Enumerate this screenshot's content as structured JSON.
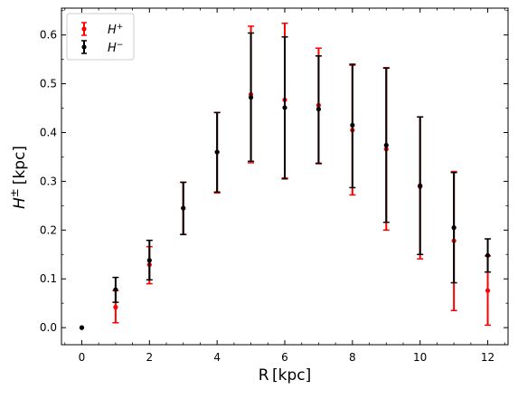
{
  "chart_data": {
    "type": "scatter",
    "title": "",
    "xlabel": "R [kpc]",
    "ylabel_main": "H",
    "ylabel_sup": "±",
    "ylabel_unit": "[kpc]",
    "xlim": [
      -0.6,
      12.6
    ],
    "ylim": [
      -0.035,
      0.655
    ],
    "xticks": [
      0,
      2,
      4,
      6,
      8,
      10,
      12
    ],
    "yticks": [
      0.0,
      0.1,
      0.2,
      0.3,
      0.4,
      0.5,
      0.6
    ],
    "xtick_labels": [
      "0",
      "2",
      "4",
      "6",
      "8",
      "10",
      "12"
    ],
    "ytick_labels": [
      "0.0",
      "0.1",
      "0.2",
      "0.3",
      "0.4",
      "0.5",
      "0.6"
    ],
    "grid": false,
    "legend_position": "top-left",
    "series": [
      {
        "name": "H+",
        "legend_main": "H",
        "legend_sup": "+",
        "color": "#ff0000",
        "x": [
          0,
          1,
          2,
          3,
          4,
          5,
          6,
          7,
          8,
          9,
          10,
          11,
          12
        ],
        "y": [
          0.0,
          0.042,
          0.129,
          0.245,
          0.36,
          0.478,
          0.467,
          0.456,
          0.405,
          0.366,
          0.289,
          0.178,
          0.076
        ],
        "yerr_low": [
          0.0,
          0.032,
          0.039,
          0.054,
          0.084,
          0.14,
          0.16,
          0.12,
          0.133,
          0.166,
          0.148,
          0.143,
          0.071
        ],
        "yerr_high": [
          0.0,
          0.034,
          0.037,
          0.053,
          0.081,
          0.14,
          0.157,
          0.117,
          0.133,
          0.167,
          0.143,
          0.142,
          0.071
        ]
      },
      {
        "name": "H-",
        "legend_main": "H",
        "legend_sup": "−",
        "color": "#000000",
        "x": [
          0,
          1,
          2,
          3,
          4,
          5,
          6,
          7,
          8,
          9,
          10,
          11,
          12
        ],
        "y": [
          0.0,
          0.078,
          0.138,
          0.245,
          0.36,
          0.472,
          0.451,
          0.448,
          0.415,
          0.374,
          0.291,
          0.205,
          0.148
        ],
        "yerr_low": [
          0.0,
          0.026,
          0.04,
          0.054,
          0.082,
          0.131,
          0.146,
          0.111,
          0.128,
          0.158,
          0.141,
          0.113,
          0.034
        ],
        "yerr_high": [
          0.0,
          0.025,
          0.041,
          0.053,
          0.081,
          0.132,
          0.145,
          0.109,
          0.125,
          0.158,
          0.141,
          0.113,
          0.034
        ]
      }
    ]
  }
}
